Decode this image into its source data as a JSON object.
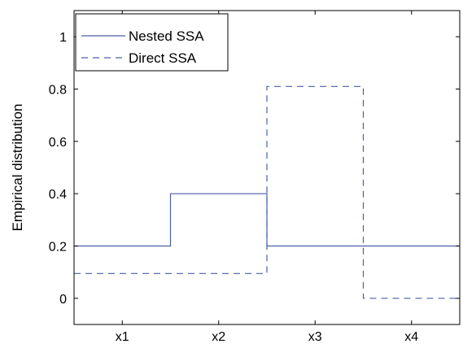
{
  "chart_data": {
    "type": "line",
    "step": true,
    "title": "",
    "xlabel": "",
    "ylabel": "Empirical distribution",
    "categories": [
      "x1",
      "x2",
      "x3",
      "x4"
    ],
    "ylim": [
      -0.1,
      1.1
    ],
    "yticks": [
      "0",
      "0.2",
      "0.4",
      "0.6",
      "0.8",
      "1"
    ],
    "grid": false,
    "legend_position": "top-left",
    "series": [
      {
        "name": "Nested SSA",
        "values": [
          0.2,
          0.4,
          0.2,
          0.2
        ],
        "style": "solid",
        "color": "#4a5fa8"
      },
      {
        "name": "Direct SSA",
        "values": [
          0.095,
          0.095,
          0.81,
          0.0
        ],
        "style": "dashed",
        "color": "#4a5fa8"
      }
    ]
  }
}
